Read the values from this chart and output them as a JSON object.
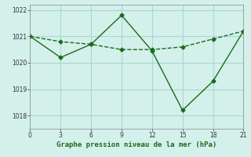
{
  "x": [
    0,
    3,
    6,
    9,
    12,
    15,
    18,
    21
  ],
  "series1": [
    1021.0,
    1020.8,
    1020.7,
    1020.5,
    1020.5,
    1020.6,
    1020.9,
    1021.2
  ],
  "series2": [
    1021.0,
    1020.2,
    1020.7,
    1021.8,
    1020.45,
    1018.2,
    1019.3,
    1021.2
  ],
  "line_color": "#1a6b1a",
  "bg_color": "#d4f0eb",
  "grid_color": "#a8d8d0",
  "xlabel": "Graphe pression niveau de la mer (hPa)",
  "xlim": [
    0,
    21
  ],
  "ylim": [
    1017.5,
    1022.2
  ],
  "xticks": [
    0,
    3,
    6,
    9,
    12,
    15,
    18,
    21
  ],
  "yticks": [
    1018,
    1019,
    1020,
    1021,
    1022
  ],
  "marker": "D",
  "marker_size": 2.5,
  "linewidth": 1.0
}
